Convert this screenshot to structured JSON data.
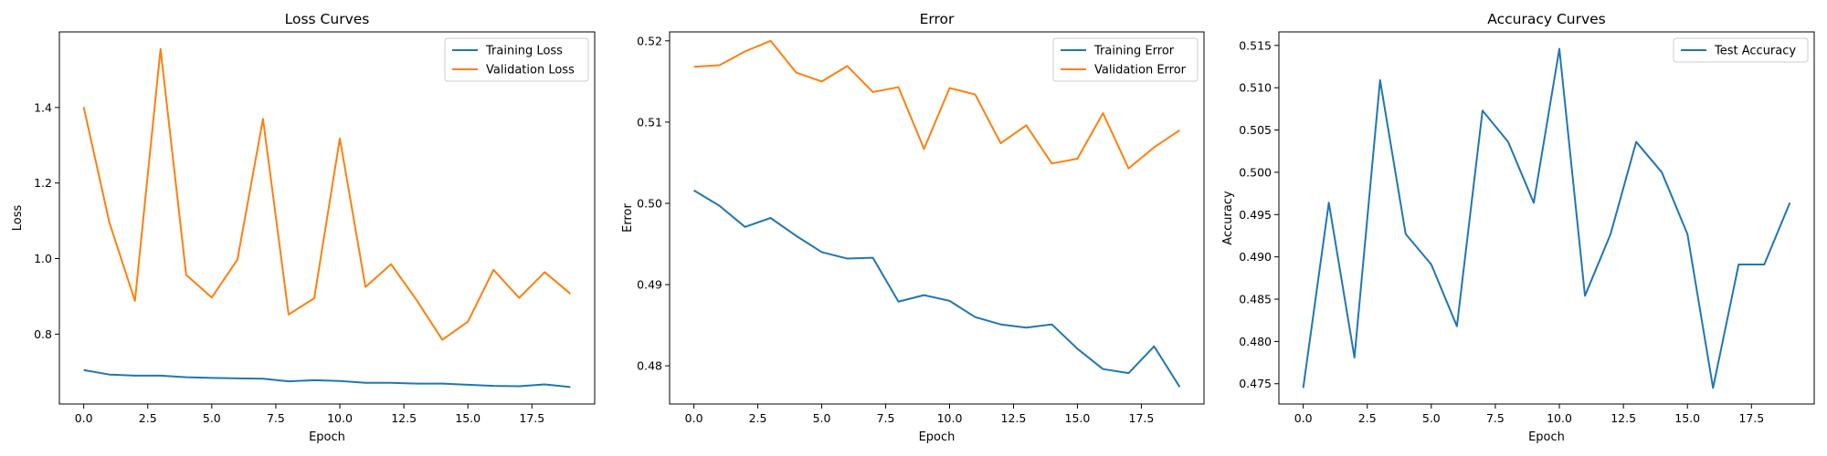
{
  "chart_data": [
    {
      "type": "line",
      "title": "Loss Curves",
      "xlabel": "Epoch",
      "ylabel": "Loss",
      "x": [
        0,
        1,
        2,
        3,
        4,
        5,
        6,
        7,
        8,
        9,
        10,
        11,
        12,
        13,
        14,
        15,
        16,
        17,
        18,
        19
      ],
      "xlim": [
        -0.95,
        19.95
      ],
      "ylim": [
        0.615,
        1.6
      ],
      "xticks": [
        0,
        2.5,
        5,
        7.5,
        10,
        12.5,
        15,
        17.5
      ],
      "xtick_labels": [
        "0.0",
        "2.5",
        "5.0",
        "7.5",
        "10.0",
        "12.5",
        "15.0",
        "17.5"
      ],
      "yticks": [
        0.8,
        1.0,
        1.2,
        1.4
      ],
      "ytick_labels": [
        "0.8",
        "1.0",
        "1.2",
        "1.4"
      ],
      "legend": "top-right",
      "series": [
        {
          "name": "Training Loss",
          "color": "#1f77b4",
          "values": [
            0.705,
            0.693,
            0.69,
            0.69,
            0.686,
            0.684,
            0.683,
            0.682,
            0.675,
            0.678,
            0.676,
            0.671,
            0.671,
            0.669,
            0.669,
            0.666,
            0.663,
            0.662,
            0.667,
            0.66
          ]
        },
        {
          "name": "Validation Loss",
          "color": "#ff7f0e",
          "values": [
            1.401,
            1.096,
            0.888,
            1.555,
            0.957,
            0.897,
            0.997,
            1.37,
            0.852,
            0.895,
            1.318,
            0.925,
            0.985,
            0.89,
            0.785,
            0.833,
            0.97,
            0.896,
            0.964,
            0.907
          ]
        }
      ]
    },
    {
      "type": "line",
      "title": "Error",
      "xlabel": "Epoch",
      "ylabel": "Error",
      "x": [
        0,
        1,
        2,
        3,
        4,
        5,
        6,
        7,
        8,
        9,
        10,
        11,
        12,
        13,
        14,
        15,
        16,
        17,
        18,
        19
      ],
      "xlim": [
        -0.95,
        19.95
      ],
      "ylim": [
        0.4753,
        0.5211
      ],
      "xticks": [
        0,
        2.5,
        5,
        7.5,
        10,
        12.5,
        15,
        17.5
      ],
      "xtick_labels": [
        "0.0",
        "2.5",
        "5.0",
        "7.5",
        "10.0",
        "12.5",
        "15.0",
        "17.5"
      ],
      "yticks": [
        0.48,
        0.49,
        0.5,
        0.51,
        0.52
      ],
      "ytick_labels": [
        "0.48",
        "0.49",
        "0.50",
        "0.51",
        "0.52"
      ],
      "legend": "top-right",
      "series": [
        {
          "name": "Training Error",
          "color": "#1f77b4",
          "values": [
            0.5016,
            0.4997,
            0.4971,
            0.4982,
            0.496,
            0.494,
            0.4932,
            0.4933,
            0.4879,
            0.4887,
            0.488,
            0.486,
            0.4851,
            0.4847,
            0.4851,
            0.4821,
            0.4796,
            0.4791,
            0.4824,
            0.4774
          ]
        },
        {
          "name": "Validation Error",
          "color": "#ff7f0e",
          "values": [
            0.5168,
            0.517,
            0.5187,
            0.52,
            0.5161,
            0.515,
            0.5169,
            0.5137,
            0.5143,
            0.5067,
            0.5142,
            0.5134,
            0.5074,
            0.5096,
            0.5049,
            0.5055,
            0.5111,
            0.5043,
            0.5069,
            0.509
          ]
        }
      ]
    },
    {
      "type": "line",
      "title": "Accuracy Curves",
      "xlabel": "Epoch",
      "ylabel": "Accuracy",
      "x": [
        0,
        1,
        2,
        3,
        4,
        5,
        6,
        7,
        8,
        9,
        10,
        11,
        12,
        13,
        14,
        15,
        16,
        17,
        18,
        19
      ],
      "xlim": [
        -0.95,
        19.95
      ],
      "ylim": [
        0.4726,
        0.5166
      ],
      "xticks": [
        0,
        2.5,
        5,
        7.5,
        10,
        12.5,
        15,
        17.5
      ],
      "xtick_labels": [
        "0.0",
        "2.5",
        "5.0",
        "7.5",
        "10.0",
        "12.5",
        "15.0",
        "17.5"
      ],
      "yticks": [
        0.475,
        0.48,
        0.485,
        0.49,
        0.495,
        0.5,
        0.505,
        0.51,
        0.515
      ],
      "ytick_labels": [
        "0.475",
        "0.480",
        "0.485",
        "0.490",
        "0.495",
        "0.500",
        "0.505",
        "0.510",
        "0.515"
      ],
      "legend": "top-right",
      "series": [
        {
          "name": "Test Accuracy",
          "color": "#1f77b4",
          "values": [
            0.4745,
            0.4964,
            0.4781,
            0.5109,
            0.4927,
            0.4891,
            0.4818,
            0.5073,
            0.5036,
            0.4964,
            0.5146,
            0.4854,
            0.4927,
            0.5036,
            0.5,
            0.4927,
            0.4745,
            0.4891,
            0.4891,
            0.4964
          ]
        }
      ]
    }
  ]
}
